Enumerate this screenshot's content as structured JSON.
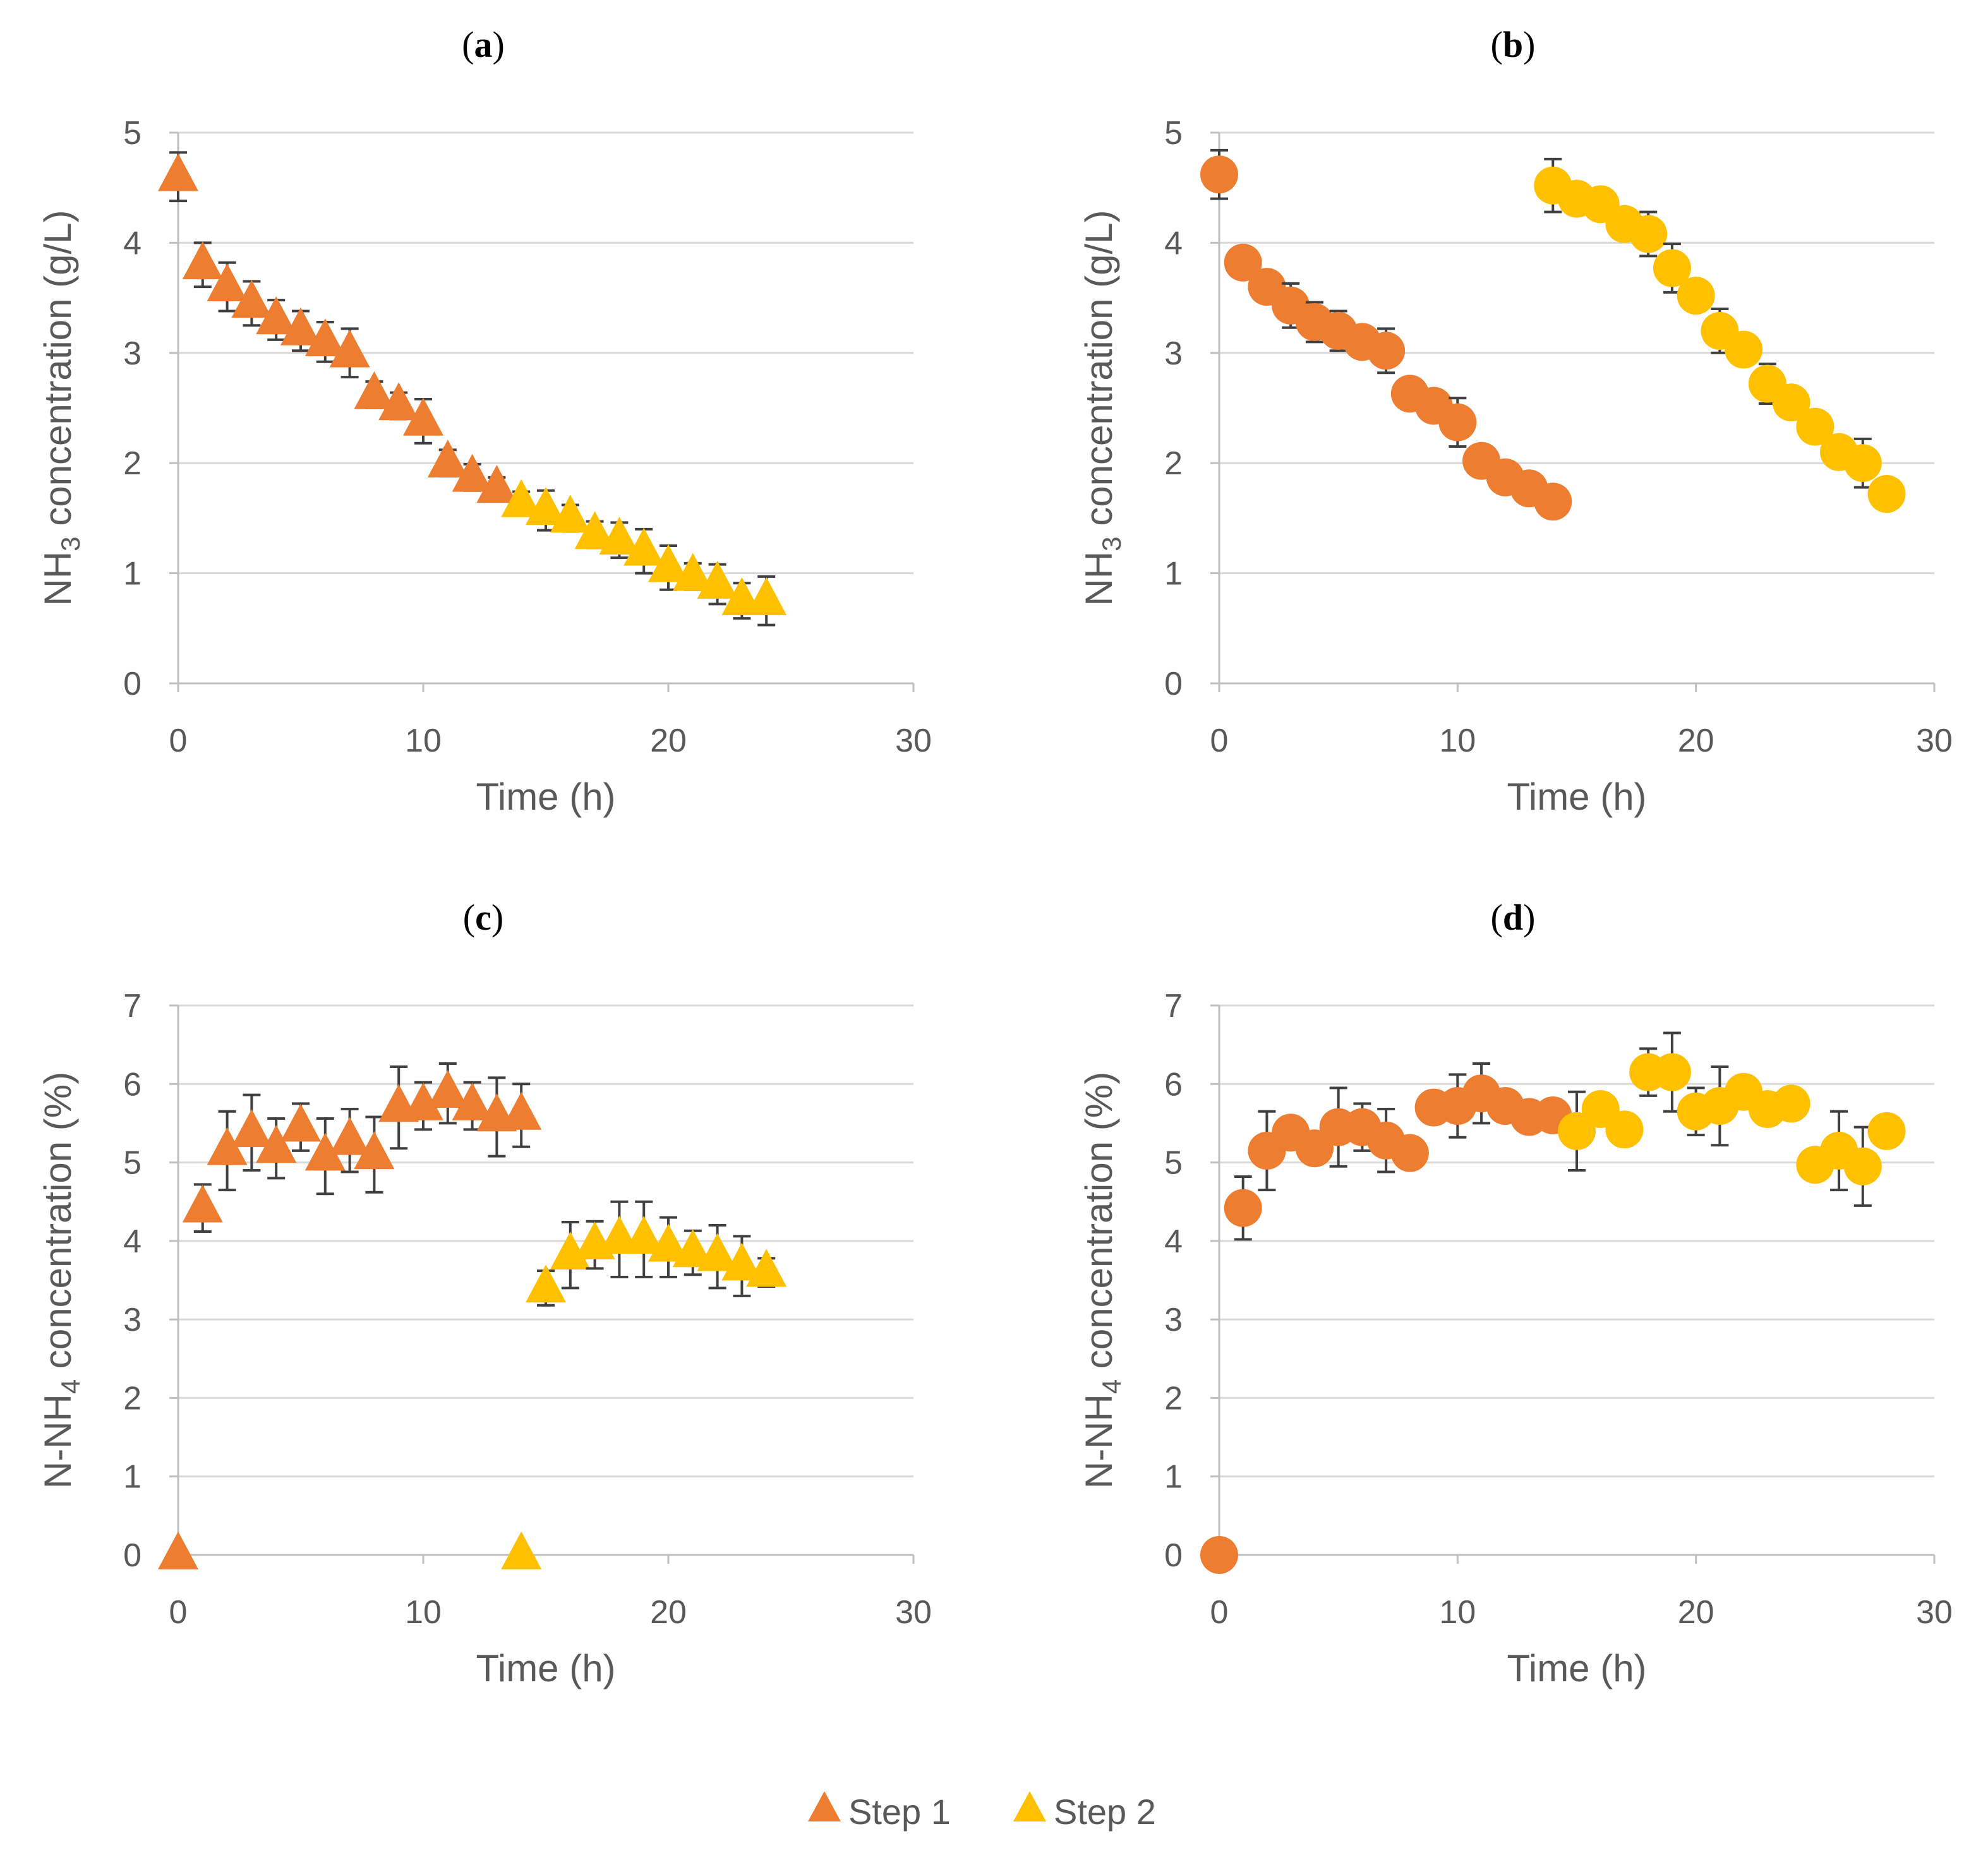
{
  "colors": {
    "step1": "#ed7d31",
    "step2": "#ffc000",
    "text": "#595959",
    "grid": "#d9d9d9",
    "errbar": "#404040"
  },
  "legend": [
    {
      "label": "Step 1",
      "color": "#ed7d31",
      "marker": "triangle"
    },
    {
      "label": "Step 2",
      "color": "#ffc000",
      "marker": "triangle"
    }
  ],
  "chart_data": [
    {
      "panel": "a",
      "title": "(a)",
      "type": "scatter",
      "marker": "triangle",
      "xlabel": "Time (h)",
      "ylabel_main": "NH",
      "ylabel_sub": "3",
      "ylabel_rest": " concentration (g/L)",
      "xlim": [
        0,
        30
      ],
      "xticks": [
        0,
        10,
        20,
        30
      ],
      "ylim": [
        0,
        5
      ],
      "yticks": [
        0,
        1,
        2,
        3,
        4,
        5
      ],
      "series": [
        {
          "name": "Step 1",
          "x": [
            0,
            1,
            2,
            3,
            4,
            5,
            6,
            7,
            8,
            9,
            10,
            11,
            12,
            13
          ],
          "y": [
            4.6,
            3.8,
            3.6,
            3.45,
            3.3,
            3.2,
            3.1,
            3.0,
            2.62,
            2.52,
            2.38,
            2.0,
            1.87,
            1.77
          ],
          "err": [
            0.22,
            0.2,
            0.22,
            0.2,
            0.18,
            0.18,
            0.18,
            0.22,
            0.12,
            0.12,
            0.2,
            0.12,
            0.12,
            0.1
          ]
        },
        {
          "name": "Step 2",
          "x": [
            14,
            15,
            16,
            17,
            18,
            19,
            20,
            21,
            22,
            23,
            24
          ],
          "y": [
            1.64,
            1.57,
            1.5,
            1.35,
            1.3,
            1.2,
            1.05,
            0.97,
            0.9,
            0.75,
            0.75
          ],
          "err": [
            0.1,
            0.18,
            0.12,
            0.12,
            0.16,
            0.2,
            0.2,
            0.12,
            0.18,
            0.16,
            0.22
          ]
        }
      ]
    },
    {
      "panel": "b",
      "title": "(b)",
      "type": "scatter",
      "marker": "circle",
      "xlabel": "Time (h)",
      "ylabel_main": "NH",
      "ylabel_sub": "3",
      "ylabel_rest": " concentration (g/L)",
      "xlim": [
        0,
        30
      ],
      "xticks": [
        0,
        10,
        20,
        30
      ],
      "ylim": [
        0,
        5
      ],
      "yticks": [
        0,
        1,
        2,
        3,
        4,
        5
      ],
      "series": [
        {
          "name": "Step 1",
          "x": [
            0,
            1,
            2,
            3,
            4,
            5,
            6,
            7,
            8,
            9,
            10,
            11,
            12,
            13,
            14
          ],
          "y": [
            4.62,
            3.82,
            3.6,
            3.43,
            3.28,
            3.2,
            3.1,
            3.02,
            2.63,
            2.52,
            2.37,
            2.02,
            1.87,
            1.77,
            1.65
          ],
          "err": [
            0.22,
            0.1,
            0.12,
            0.2,
            0.18,
            0.18,
            0.12,
            0.2,
            0.12,
            0.12,
            0.22,
            0.12,
            0.12,
            0.1,
            0.1
          ]
        },
        {
          "name": "Step 2",
          "x": [
            14,
            15,
            16,
            17,
            18,
            19,
            20,
            21,
            22,
            23,
            24,
            25,
            26,
            27,
            28
          ],
          "y": [
            4.52,
            4.4,
            4.35,
            4.17,
            4.08,
            3.77,
            3.52,
            3.2,
            3.03,
            2.72,
            2.55,
            2.33,
            2.1,
            2.0,
            1.72
          ],
          "err": [
            0.24,
            0.12,
            0.1,
            0.12,
            0.2,
            0.22,
            0.12,
            0.2,
            0.12,
            0.18,
            0.12,
            0.12,
            0.12,
            0.22,
            0.1
          ]
        }
      ]
    },
    {
      "panel": "c",
      "title": "(c)",
      "type": "scatter",
      "marker": "triangle",
      "xlabel": "Time (h)",
      "ylabel_main": "N-NH",
      "ylabel_sub": "4",
      "ylabel_rest": " concentration (%)",
      "xlim": [
        0,
        30
      ],
      "xticks": [
        0,
        10,
        20,
        30
      ],
      "ylim": [
        0,
        7
      ],
      "yticks": [
        0,
        1,
        2,
        3,
        4,
        5,
        6,
        7
      ],
      "series": [
        {
          "name": "Step 1",
          "x": [
            0,
            1,
            2,
            3,
            4,
            5,
            6,
            7,
            8,
            9,
            10,
            11,
            12,
            13,
            14
          ],
          "y": [
            0,
            4.42,
            5.15,
            5.38,
            5.18,
            5.45,
            5.08,
            5.28,
            5.1,
            5.7,
            5.72,
            5.88,
            5.72,
            5.58,
            5.6
          ],
          "err": [
            0,
            0.3,
            0.5,
            0.48,
            0.38,
            0.3,
            0.48,
            0.4,
            0.48,
            0.52,
            0.3,
            0.38,
            0.3,
            0.5,
            0.4
          ]
        },
        {
          "name": "Step 2",
          "x": [
            14,
            15,
            16,
            17,
            18,
            19,
            20,
            21,
            22,
            23,
            24
          ],
          "y": [
            0,
            3.4,
            3.82,
            3.95,
            4.02,
            4.02,
            3.92,
            3.85,
            3.8,
            3.68,
            3.6
          ],
          "err": [
            0,
            0.22,
            0.42,
            0.3,
            0.48,
            0.48,
            0.38,
            0.28,
            0.4,
            0.38,
            0.18
          ]
        }
      ]
    },
    {
      "panel": "d",
      "title": "(d)",
      "type": "scatter",
      "marker": "circle",
      "xlabel": "Time (h)",
      "ylabel_main": "N-NH",
      "ylabel_sub": "4",
      "ylabel_rest": " concentration (%)",
      "xlim": [
        0,
        30
      ],
      "xticks": [
        0,
        10,
        20,
        30
      ],
      "ylim": [
        0,
        7
      ],
      "yticks": [
        0,
        1,
        2,
        3,
        4,
        5,
        6,
        7
      ],
      "series": [
        {
          "name": "Step 1",
          "x": [
            0,
            1,
            2,
            3,
            4,
            5,
            6,
            7,
            8,
            9,
            10,
            11,
            12,
            13,
            14
          ],
          "y": [
            0,
            4.42,
            5.15,
            5.38,
            5.18,
            5.45,
            5.45,
            5.28,
            5.12,
            5.7,
            5.72,
            5.88,
            5.72,
            5.58,
            5.6
          ],
          "err": [
            0,
            0.4,
            0.5,
            0.2,
            0.2,
            0.5,
            0.3,
            0.4,
            0.2,
            0.2,
            0.4,
            0.38,
            0.2,
            0.2,
            0.2
          ]
        },
        {
          "name": "Step 2",
          "x": [
            15,
            16,
            17,
            18,
            19,
            20,
            21,
            22,
            23,
            24,
            25,
            26,
            27,
            28
          ],
          "y": [
            5.4,
            5.68,
            5.42,
            6.15,
            6.15,
            5.65,
            5.72,
            5.9,
            5.68,
            5.75,
            4.97,
            5.15,
            4.95,
            5.4
          ],
          "err": [
            0.5,
            0.2,
            0.2,
            0.3,
            0.5,
            0.3,
            0.5,
            0.2,
            0.2,
            0.2,
            0.2,
            0.5,
            0.5,
            0.2
          ]
        }
      ]
    }
  ]
}
